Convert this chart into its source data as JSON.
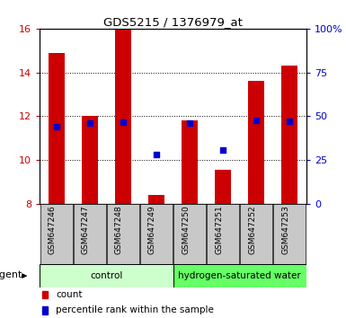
{
  "title": "GDS5215 / 1376979_at",
  "samples": [
    "GSM647246",
    "GSM647247",
    "GSM647248",
    "GSM647249",
    "GSM647250",
    "GSM647251",
    "GSM647252",
    "GSM647253"
  ],
  "count_values": [
    14.9,
    12.0,
    16.0,
    8.4,
    11.8,
    9.55,
    13.6,
    14.3
  ],
  "percentile_values": [
    44.0,
    46.0,
    46.5,
    28.0,
    46.0,
    30.5,
    47.5,
    47.0
  ],
  "ylim_left": [
    8,
    16
  ],
  "ylim_right": [
    0,
    100
  ],
  "yticks_left": [
    8,
    10,
    12,
    14,
    16
  ],
  "yticks_right": [
    0,
    25,
    50,
    75,
    100
  ],
  "ytick_labels_right": [
    "0",
    "25",
    "50",
    "75",
    "100%"
  ],
  "bar_color": "#cc0000",
  "dot_color": "#0000cc",
  "bar_bottom": 8,
  "control_label": "control",
  "treatment_label": "hydrogen-saturated water",
  "control_color": "#ccffcc",
  "treatment_color": "#66ff66",
  "agent_label": "agent",
  "legend_count": "count",
  "legend_percentile": "percentile rank within the sample",
  "tick_color_left": "#cc0000",
  "tick_color_right": "#0000cc",
  "bar_width": 0.5,
  "grid_color": "black",
  "grid_linestyle": ":"
}
